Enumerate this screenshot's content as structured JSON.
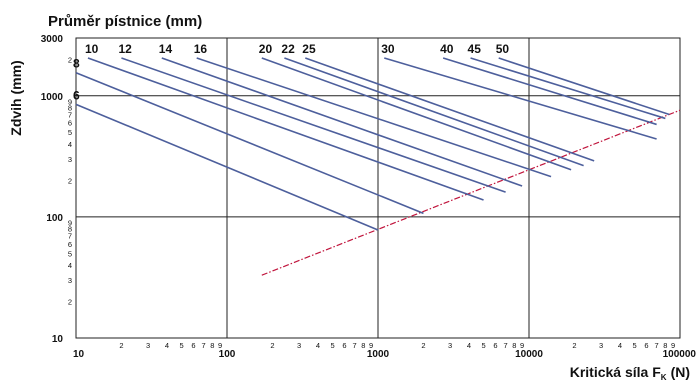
{
  "chart_data": {
    "type": "line",
    "title": "Průměr pístnice (mm)",
    "ylabel": "Zdvih (mm)",
    "xlabel_main": "Kritická síla F",
    "xlabel_sub": "K",
    "xlabel_unit": "(N)",
    "x_scale": "log",
    "y_scale": "log",
    "xlim": [
      10,
      100000
    ],
    "ylim": [
      10,
      3000
    ],
    "x_major_ticks": [
      {
        "value": 10,
        "label": "10"
      },
      {
        "value": 100,
        "label": "100"
      },
      {
        "value": 1000,
        "label": "1000"
      },
      {
        "value": 10000,
        "label": "10000"
      },
      {
        "value": 100000,
        "label": "100000"
      }
    ],
    "x_minor_digits": [
      "2",
      "3",
      "4",
      "5",
      "6",
      "7",
      "8",
      "9"
    ],
    "y_major_ticks": [
      {
        "value": 10,
        "label": "10"
      },
      {
        "value": 100,
        "label": "100"
      },
      {
        "value": 1000,
        "label": "1000"
      },
      {
        "value": 3000,
        "label": "3000"
      }
    ],
    "y_minor_digits": [
      "2",
      "3",
      "4",
      "5",
      "6",
      "7",
      "8",
      "9"
    ],
    "grid_major": true,
    "line_color": "#4d5f9c",
    "limit_color": "#c0143c",
    "series": [
      {
        "name": "6",
        "x": [
          10,
          1000
        ],
        "y": [
          850,
          78
        ]
      },
      {
        "name": "8",
        "x": [
          10,
          2000
        ],
        "y": [
          1550,
          107
        ]
      },
      {
        "name": "10",
        "x": [
          12,
          5000
        ],
        "y": [
          2050,
          138
        ]
      },
      {
        "name": "12",
        "x": [
          20,
          7000
        ],
        "y": [
          2050,
          160
        ]
      },
      {
        "name": "14",
        "x": [
          37,
          9000
        ],
        "y": [
          2050,
          180
        ]
      },
      {
        "name": "16",
        "x": [
          63,
          14000
        ],
        "y": [
          2050,
          215
        ]
      },
      {
        "name": "20",
        "x": [
          170,
          19000
        ],
        "y": [
          2050,
          245
        ]
      },
      {
        "name": "22",
        "x": [
          240,
          23000
        ],
        "y": [
          2050,
          265
        ]
      },
      {
        "name": "25",
        "x": [
          330,
          27000
        ],
        "y": [
          2050,
          290
        ]
      },
      {
        "name": "30",
        "x": [
          1100,
          70000
        ],
        "y": [
          2050,
          440
        ]
      },
      {
        "name": "40",
        "x": [
          2700,
          70000
        ],
        "y": [
          2050,
          580
        ]
      },
      {
        "name": "45",
        "x": [
          4100,
          80000
        ],
        "y": [
          2050,
          650
        ]
      },
      {
        "name": "50",
        "x": [
          6300,
          85000
        ],
        "y": [
          2050,
          700
        ]
      }
    ],
    "limit_line": {
      "x": [
        170,
        100000
      ],
      "y": [
        33,
        760
      ]
    }
  }
}
